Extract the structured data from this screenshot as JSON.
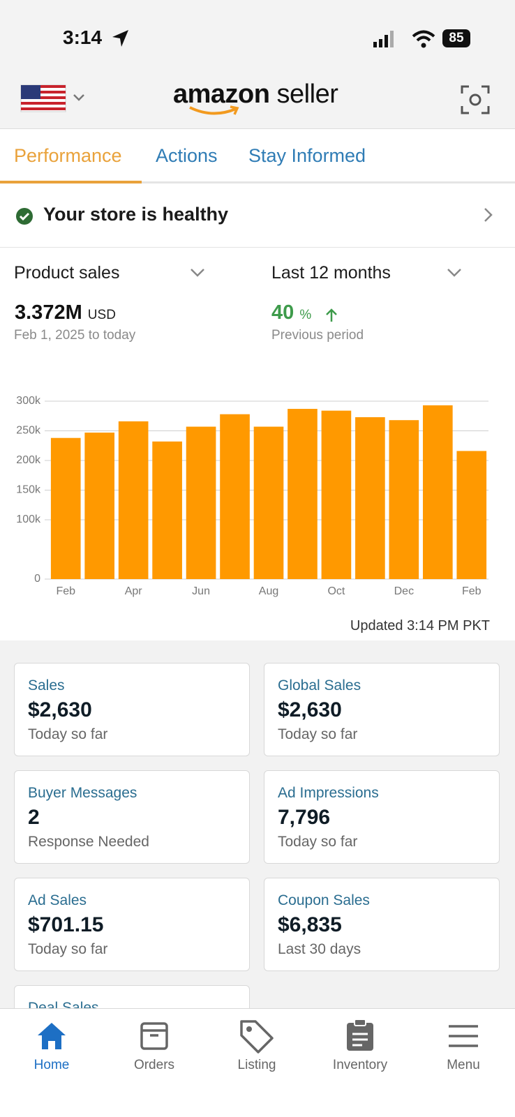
{
  "status_bar": {
    "time": "3:14",
    "battery": "85"
  },
  "header": {
    "brand": "amazon",
    "brand_suffix": "seller"
  },
  "tabs": [
    "Performance",
    "Actions",
    "Stay Informed"
  ],
  "health": "Your store is healthy",
  "summary": {
    "metric": "Product sales",
    "period": "Last 12 months",
    "total": "3.372M",
    "currency": "USD",
    "range": "Feb 1, 2025 to today",
    "change": "40",
    "change_unit": "%",
    "change_note": "Previous period"
  },
  "chart_data": {
    "type": "bar",
    "categories": [
      "Feb",
      null,
      "Apr",
      null,
      "Jun",
      null,
      "Aug",
      null,
      "Oct",
      null,
      "Dec",
      null,
      "Feb"
    ],
    "values": [
      238000,
      247000,
      266000,
      232000,
      257000,
      278000,
      257000,
      287000,
      284000,
      273000,
      268000,
      293000,
      216000
    ],
    "color": "#ff9900",
    "ylim": [
      0,
      300000
    ],
    "yticks": [
      0,
      {
        "value": 100000,
        "label": "100k"
      },
      {
        "value": 150000,
        "label": "150k"
      },
      {
        "value": 200000,
        "label": "200k"
      },
      {
        "value": 250000,
        "label": "250k"
      },
      {
        "value": 300000,
        "label": "300k"
      }
    ],
    "grid": true
  },
  "updated": "Updated 3:14 PM PKT",
  "cards": [
    {
      "title": "Sales",
      "value": "$2,630",
      "note": "Today so far"
    },
    {
      "title": "Global Sales",
      "value": "$2,630",
      "note": "Today so far"
    },
    {
      "title": "Buyer Messages",
      "value": "2",
      "note": "Response Needed"
    },
    {
      "title": "Ad Impressions",
      "value": "7,796",
      "note": "Today so far"
    },
    {
      "title": "Ad Sales",
      "value": "$701.15",
      "note": "Today so far"
    },
    {
      "title": "Coupon Sales",
      "value": "$6,835",
      "note": "Last 30 days"
    },
    {
      "title": "Deal Sales"
    }
  ],
  "nav": [
    "Home",
    "Orders",
    "Listing",
    "Inventory",
    "Menu"
  ]
}
